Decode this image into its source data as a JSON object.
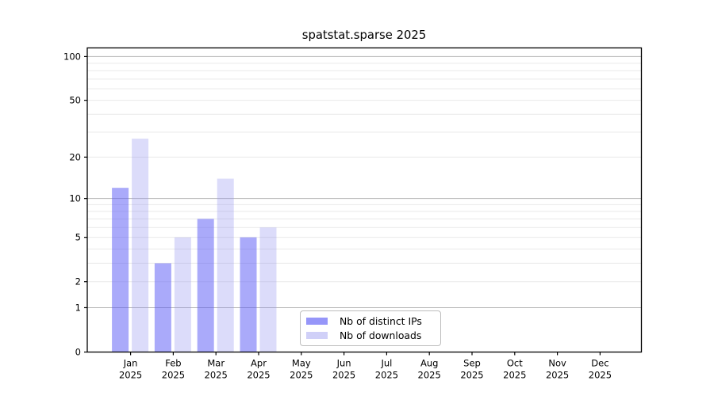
{
  "window": {
    "background": "#ffffff"
  },
  "chart_data": {
    "type": "bar",
    "title": "spatstat.sparse 2025",
    "categories": [
      "Jan",
      "Feb",
      "Mar",
      "Apr",
      "May",
      "Jun",
      "Jul",
      "Aug",
      "Sep",
      "Oct",
      "Nov",
      "Dec"
    ],
    "year_label": "2025",
    "series": [
      {
        "name": "Nb of distinct IPs",
        "color": "#5555F5",
        "fill_alpha": 0.5,
        "values": [
          12,
          3,
          7,
          5,
          0,
          0,
          0,
          0,
          0,
          0,
          0,
          0
        ]
      },
      {
        "name": "Nb of downloads",
        "color": "#9696F0",
        "fill_alpha": 0.33,
        "values": [
          27,
          5,
          14,
          6,
          0,
          0,
          0,
          0,
          0,
          0,
          0,
          0
        ]
      }
    ],
    "scale": "log1p",
    "ylim": [
      0,
      114.6
    ],
    "y_ticks": [
      0,
      1,
      2,
      5,
      10,
      20,
      50,
      100
    ],
    "xlabel": "",
    "ylabel": "",
    "grid": {
      "major_values": [
        1,
        10,
        100
      ],
      "minor_values": [
        2,
        3,
        4,
        5,
        6,
        7,
        8,
        9,
        20,
        30,
        40,
        50,
        60,
        70,
        80,
        90
      ],
      "major_color": "#b4b4b4",
      "minor_color": "#e9e9e9"
    },
    "axis_color": "#000000",
    "legend_position": "lower center"
  },
  "legend": {
    "items": [
      {
        "label": "Nb of distinct IPs"
      },
      {
        "label": "Nb of downloads"
      }
    ]
  }
}
